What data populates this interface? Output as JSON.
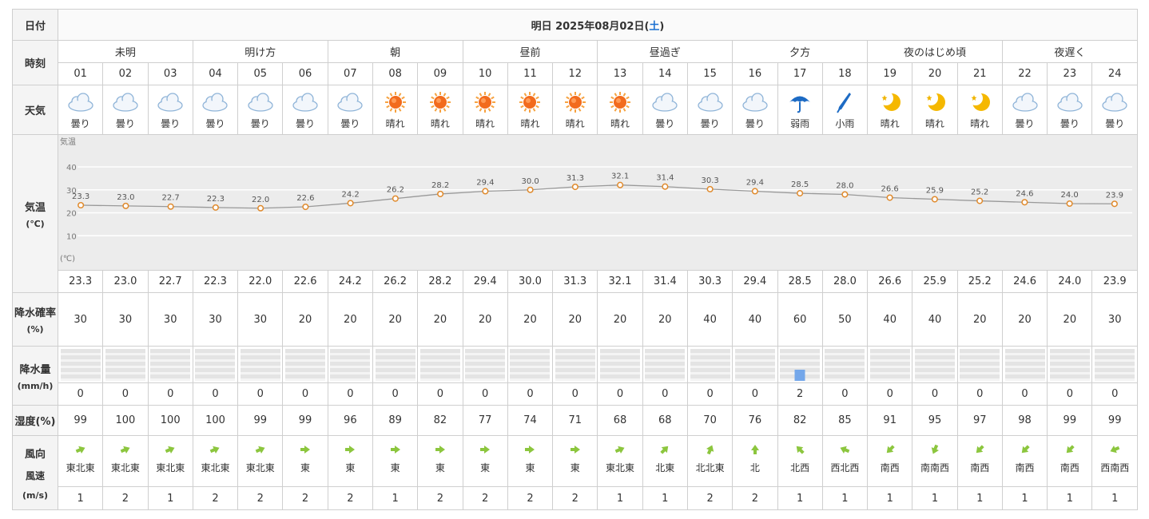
{
  "header": {
    "row_label_date": "日付",
    "date_title_prefix": "明日 2025年08月02日(",
    "date_title_dow": "土",
    "date_title_suffix": ")"
  },
  "row_labels": {
    "time": "時刻",
    "weather": "天気",
    "temp_line1": "気温",
    "temp_line2": "(℃)",
    "pop_line1": "降水確率",
    "pop_line2": "(%)",
    "precip_line1": "降水量",
    "precip_line2": "(mm/h)",
    "humidity": "湿度(%)",
    "wind_line1": "風向",
    "wind_line2": "風速",
    "wind_line3": "(m/s)"
  },
  "periods": [
    "未明",
    "明け方",
    "朝",
    "昼前",
    "昼過ぎ",
    "夕方",
    "夜のはじめ頃",
    "夜遅く"
  ],
  "hours": [
    "01",
    "02",
    "03",
    "04",
    "05",
    "06",
    "07",
    "08",
    "09",
    "10",
    "11",
    "12",
    "13",
    "14",
    "15",
    "16",
    "17",
    "18",
    "19",
    "20",
    "21",
    "22",
    "23",
    "24"
  ],
  "weather": [
    {
      "icon": "cloud-icon",
      "label": "曇り"
    },
    {
      "icon": "cloud-icon",
      "label": "曇り"
    },
    {
      "icon": "cloud-icon",
      "label": "曇り"
    },
    {
      "icon": "cloud-icon",
      "label": "曇り"
    },
    {
      "icon": "cloud-icon",
      "label": "曇り"
    },
    {
      "icon": "cloud-icon",
      "label": "曇り"
    },
    {
      "icon": "cloud-icon",
      "label": "曇り"
    },
    {
      "icon": "sun-icon",
      "label": "晴れ"
    },
    {
      "icon": "sun-icon",
      "label": "晴れ"
    },
    {
      "icon": "sun-icon",
      "label": "晴れ"
    },
    {
      "icon": "sun-icon",
      "label": "晴れ"
    },
    {
      "icon": "sun-icon",
      "label": "晴れ"
    },
    {
      "icon": "sun-icon",
      "label": "晴れ"
    },
    {
      "icon": "cloud-icon",
      "label": "曇り"
    },
    {
      "icon": "cloud-icon",
      "label": "曇り"
    },
    {
      "icon": "cloud-icon",
      "label": "曇り"
    },
    {
      "icon": "umbrella-icon",
      "label": "弱雨"
    },
    {
      "icon": "closed-umbrella-icon",
      "label": "小雨"
    },
    {
      "icon": "moon-icon",
      "label": "晴れ"
    },
    {
      "icon": "moon-icon",
      "label": "晴れ"
    },
    {
      "icon": "moon-icon",
      "label": "晴れ"
    },
    {
      "icon": "cloud-icon",
      "label": "曇り"
    },
    {
      "icon": "cloud-icon",
      "label": "曇り"
    },
    {
      "icon": "cloud-icon",
      "label": "曇り"
    }
  ],
  "chart_data": {
    "type": "line",
    "ylabel": "気温",
    "yunit": "(℃)",
    "ylim": [
      0,
      45
    ],
    "yticks": [
      10,
      20,
      30,
      40
    ],
    "grid": true,
    "x": [
      "01",
      "02",
      "03",
      "04",
      "05",
      "06",
      "07",
      "08",
      "09",
      "10",
      "11",
      "12",
      "13",
      "14",
      "15",
      "16",
      "17",
      "18",
      "19",
      "20",
      "21",
      "22",
      "23",
      "24"
    ],
    "values": [
      23.3,
      23.0,
      22.7,
      22.3,
      22.0,
      22.6,
      24.2,
      26.2,
      28.2,
      29.4,
      30.0,
      31.3,
      32.1,
      31.4,
      30.3,
      29.4,
      28.5,
      28.0,
      26.6,
      25.9,
      25.2,
      24.6,
      24.0,
      23.9
    ],
    "labels": [
      "23.3",
      "23.0",
      "22.7",
      "22.3",
      "22.0",
      "22.6",
      "24.2",
      "26.2",
      "28.2",
      "29.4",
      "30.0",
      "31.3",
      "32.1",
      "31.4",
      "30.3",
      "29.4",
      "28.5",
      "28.0",
      "26.6",
      "25.9",
      "25.2",
      "24.6",
      "24.0",
      "23.9"
    ],
    "line_color": "#999999",
    "marker_color": "#e08a2c"
  },
  "temperature": [
    "23.3",
    "23.0",
    "22.7",
    "22.3",
    "22.0",
    "22.6",
    "24.2",
    "26.2",
    "28.2",
    "29.4",
    "30.0",
    "31.3",
    "32.1",
    "31.4",
    "30.3",
    "29.4",
    "28.5",
    "28.0",
    "26.6",
    "25.9",
    "25.2",
    "24.6",
    "24.0",
    "23.9"
  ],
  "precip_probability": [
    "30",
    "30",
    "30",
    "30",
    "30",
    "20",
    "20",
    "20",
    "20",
    "20",
    "20",
    "20",
    "20",
    "20",
    "40",
    "40",
    "60",
    "50",
    "40",
    "40",
    "20",
    "20",
    "20",
    "30"
  ],
  "precip_amount": [
    "0",
    "0",
    "0",
    "0",
    "0",
    "0",
    "0",
    "0",
    "0",
    "0",
    "0",
    "0",
    "0",
    "0",
    "0",
    "0",
    "2",
    "0",
    "0",
    "0",
    "0",
    "0",
    "0",
    "0"
  ],
  "precip_bar_max_mm": 10,
  "humidity": [
    "99",
    "100",
    "100",
    "100",
    "99",
    "99",
    "96",
    "89",
    "82",
    "77",
    "74",
    "71",
    "68",
    "68",
    "70",
    "76",
    "82",
    "85",
    "91",
    "95",
    "97",
    "98",
    "99",
    "99"
  ],
  "wind_direction": [
    "東北東",
    "東北東",
    "東北東",
    "東北東",
    "東北東",
    "東",
    "東",
    "東",
    "東",
    "東",
    "東",
    "東",
    "東北東",
    "北東",
    "北北東",
    "北",
    "北西",
    "西北西",
    "南西",
    "南南西",
    "南西",
    "南西",
    "南西",
    "西南西"
  ],
  "wind_speed": [
    "1",
    "2",
    "1",
    "2",
    "2",
    "2",
    "2",
    "1",
    "2",
    "2",
    "2",
    "2",
    "1",
    "1",
    "2",
    "2",
    "1",
    "1",
    "1",
    "1",
    "1",
    "1",
    "1",
    "1"
  ],
  "colors": {
    "sat_blue": "#1a6fd1",
    "wind_green": "#8cc63e",
    "rain_blue": "#74a7ea",
    "cloud_blue": "#8fb4d8",
    "sun_orange": "#f26b1d",
    "moon_yellow": "#f5b800"
  }
}
